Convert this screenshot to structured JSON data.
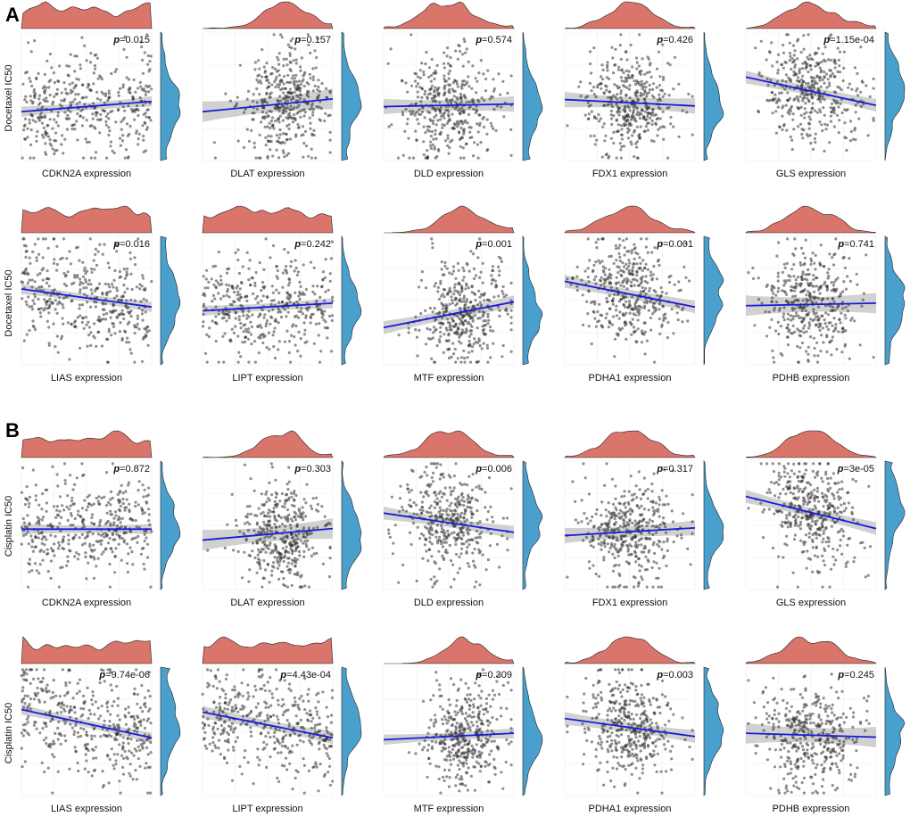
{
  "panels": [
    {
      "letter": "A",
      "ylabel": "Docetaxel IC50"
    },
    {
      "letter": "B",
      "ylabel": "Cisplatin IC50"
    }
  ],
  "colors": {
    "top_density": "#d9756a",
    "right_density": "#4aa0cd",
    "points": "#333333",
    "fit_line": "#1a1adb",
    "ci_band": "#bdbdbd",
    "grid": "#ececec"
  },
  "chart_data": [
    {
      "type": "scatter",
      "panel": "A",
      "ylabel": "Docetaxel IC50",
      "xlabel": "CDKN2A expression",
      "p_label": "p=0.015",
      "slope": 0.08,
      "y_intercept": 0.42,
      "ci": 0.04,
      "x_dist": "broad",
      "n_points": 400
    },
    {
      "type": "scatter",
      "panel": "A",
      "ylabel": "Docetaxel IC50",
      "xlabel": "DLAT expression",
      "p_label": "p=0.157",
      "slope": 0.1,
      "y_intercept": 0.43,
      "ci": 0.08,
      "x_dist": "right",
      "n_points": 400
    },
    {
      "type": "scatter",
      "panel": "A",
      "ylabel": "Docetaxel IC50",
      "xlabel": "DLD expression",
      "p_label": "p=0.574",
      "slope": 0.02,
      "y_intercept": 0.43,
      "ci": 0.06,
      "x_dist": "center",
      "n_points": 400
    },
    {
      "type": "scatter",
      "panel": "A",
      "ylabel": "Docetaxel IC50",
      "xlabel": "FDX1 expression",
      "p_label": "p=0.426",
      "slope": -0.05,
      "y_intercept": 0.45,
      "ci": 0.06,
      "x_dist": "center",
      "n_points": 400
    },
    {
      "type": "scatter",
      "panel": "A",
      "ylabel": "Docetaxel IC50",
      "xlabel": "GLS expression",
      "p_label": "p=1.15e-04",
      "slope": -0.22,
      "y_intercept": 0.54,
      "ci": 0.05,
      "x_dist": "center",
      "n_points": 400
    },
    {
      "type": "scatter",
      "panel": "A",
      "ylabel": "Docetaxel IC50",
      "xlabel": "LIAS expression",
      "p_label": "p=0.016",
      "slope": -0.14,
      "y_intercept": 0.52,
      "ci": 0.04,
      "x_dist": "broad",
      "n_points": 400
    },
    {
      "type": "scatter",
      "panel": "A",
      "ylabel": "Docetaxel IC50",
      "xlabel": "LIPT expression",
      "p_label": "p=0.242",
      "slope": 0.06,
      "y_intercept": 0.45,
      "ci": 0.04,
      "x_dist": "broad",
      "n_points": 400
    },
    {
      "type": "scatter",
      "panel": "A",
      "ylabel": "Docetaxel IC50",
      "xlabel": "MTF expression",
      "p_label": "p=0.001",
      "slope": 0.2,
      "y_intercept": 0.39,
      "ci": 0.05,
      "x_dist": "right",
      "n_points": 400
    },
    {
      "type": "scatter",
      "panel": "A",
      "ylabel": "Docetaxel IC50",
      "xlabel": "PDHA1 expression",
      "p_label": "p=0.001",
      "slope": -0.2,
      "y_intercept": 0.55,
      "ci": 0.05,
      "x_dist": "center",
      "n_points": 400
    },
    {
      "type": "scatter",
      "panel": "A",
      "ylabel": "Docetaxel IC50",
      "xlabel": "PDHB expression",
      "p_label": "p=0.741",
      "slope": 0.02,
      "y_intercept": 0.47,
      "ci": 0.08,
      "x_dist": "center",
      "n_points": 400
    },
    {
      "type": "scatter",
      "panel": "B",
      "ylabel": "Cisplatin IC50",
      "xlabel": "CDKN2A expression",
      "p_label": "p=0.872",
      "slope": 0.0,
      "y_intercept": 0.47,
      "ci": 0.04,
      "x_dist": "broad",
      "n_points": 400
    },
    {
      "type": "scatter",
      "panel": "B",
      "ylabel": "Cisplatin IC50",
      "xlabel": "DLAT expression",
      "p_label": "p=0.303",
      "slope": 0.09,
      "y_intercept": 0.43,
      "ci": 0.08,
      "x_dist": "right",
      "n_points": 400
    },
    {
      "type": "scatter",
      "panel": "B",
      "ylabel": "Cisplatin IC50",
      "xlabel": "DLD expression",
      "p_label": "p=0.006",
      "slope": -0.15,
      "y_intercept": 0.52,
      "ci": 0.05,
      "x_dist": "center",
      "n_points": 400
    },
    {
      "type": "scatter",
      "panel": "B",
      "ylabel": "Cisplatin IC50",
      "xlabel": "FDX1 expression",
      "p_label": "p=0.317",
      "slope": 0.06,
      "y_intercept": 0.45,
      "ci": 0.06,
      "x_dist": "center",
      "n_points": 400
    },
    {
      "type": "scatter",
      "panel": "B",
      "ylabel": "Cisplatin IC50",
      "xlabel": "GLS expression",
      "p_label": "p=3e-05",
      "slope": -0.25,
      "y_intercept": 0.6,
      "ci": 0.05,
      "x_dist": "center",
      "n_points": 400
    },
    {
      "type": "scatter",
      "panel": "B",
      "ylabel": "Cisplatin IC50",
      "xlabel": "LIAS expression",
      "p_label": "p=9.74e-06",
      "slope": -0.22,
      "y_intercept": 0.56,
      "ci": 0.04,
      "x_dist": "broad",
      "n_points": 400
    },
    {
      "type": "scatter",
      "panel": "B",
      "ylabel": "Cisplatin IC50",
      "xlabel": "LIPT expression",
      "p_label": "p=4.43e-04",
      "slope": -0.2,
      "y_intercept": 0.55,
      "ci": 0.05,
      "x_dist": "broad",
      "n_points": 400
    },
    {
      "type": "scatter",
      "panel": "B",
      "ylabel": "Cisplatin IC50",
      "xlabel": "MTF expression",
      "p_label": "p=0.309",
      "slope": 0.05,
      "y_intercept": 0.46,
      "ci": 0.04,
      "x_dist": "right",
      "n_points": 400
    },
    {
      "type": "scatter",
      "panel": "B",
      "ylabel": "Cisplatin IC50",
      "xlabel": "PDHA1 expression",
      "p_label": "p=0.003",
      "slope": -0.14,
      "y_intercept": 0.53,
      "ci": 0.05,
      "x_dist": "center",
      "n_points": 400
    },
    {
      "type": "scatter",
      "panel": "B",
      "ylabel": "Cisplatin IC50",
      "xlabel": "PDHB expression",
      "p_label": "p=0.245",
      "slope": -0.03,
      "y_intercept": 0.47,
      "ci": 0.08,
      "x_dist": "center",
      "n_points": 400
    }
  ]
}
